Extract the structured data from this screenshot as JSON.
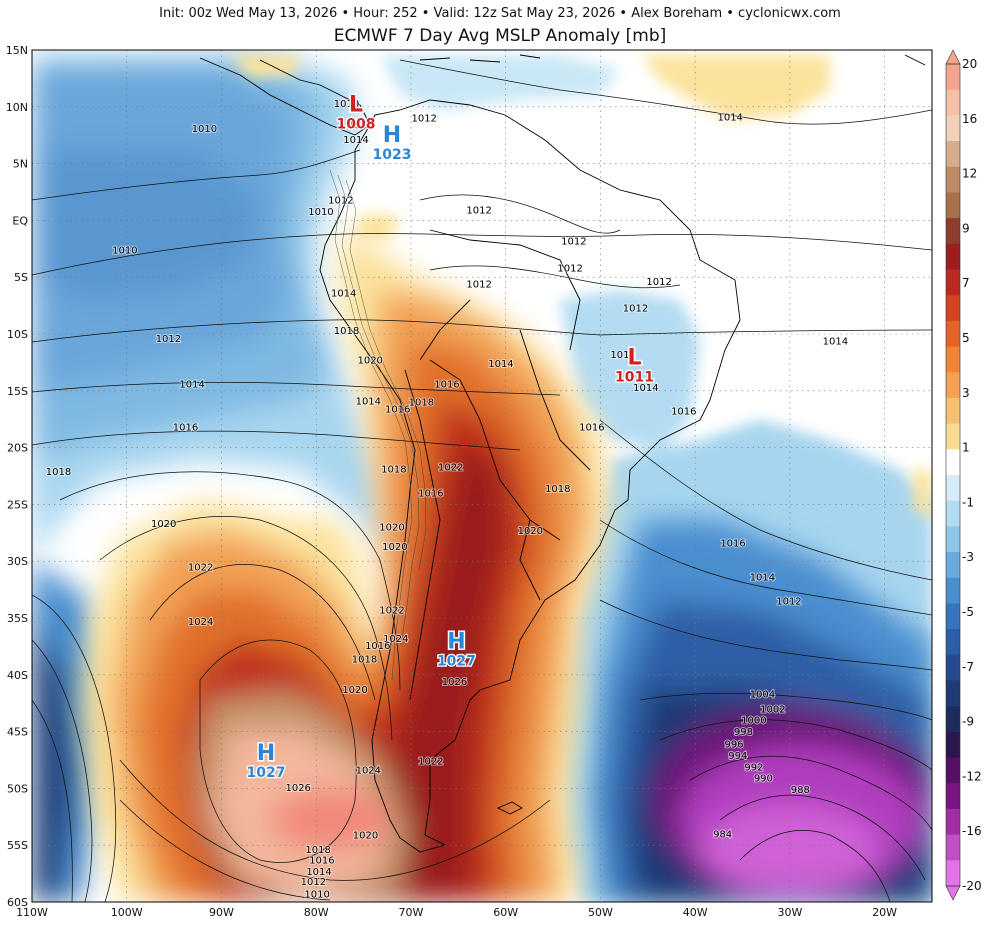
{
  "header": {
    "info_line": "Init: 00z Wed May 13, 2026 • Hour: 252 • Valid: 12z Sat May 23, 2026 • Alex Boreham • cyclonicwx.com",
    "title": "ECMWF 7 Day Avg MSLP Anomaly [mb]"
  },
  "map": {
    "lat_labels": [
      "15N",
      "10N",
      "5N",
      "EQ",
      "5S",
      "10S",
      "15S",
      "20S",
      "25S",
      "30S",
      "35S",
      "40S",
      "45S",
      "50S",
      "55S",
      "60S"
    ],
    "lon_labels": [
      "110W",
      "100W",
      "90W",
      "80W",
      "70W",
      "60W",
      "50W",
      "40W",
      "30W",
      "20W"
    ],
    "colors": {
      "deep_purple": "#7a0f86",
      "magenta": "#c04fd0",
      "dark_blue": "#1e3d7a",
      "blue": "#3d76b8",
      "light_blue": "#a7d5ef",
      "sky": "#c9e7f6",
      "white": "#ffffff",
      "pale_yellow": "#fbe39c",
      "orange": "#f2a154",
      "dark_orange": "#e0702a",
      "red": "#c0301f",
      "dark_red": "#9a1f1f",
      "brown": "#c5946a",
      "peach": "#f3b79d",
      "salmon": "#f2897a"
    },
    "isobar_labels": [
      {
        "text": "1010",
        "lon": -76.8,
        "lat": 10.3
      },
      {
        "text": "1008",
        "lon": -75.3,
        "lat": 8.4
      },
      {
        "text": "1014",
        "lon": -75.8,
        "lat": 7.1
      },
      {
        "text": "1012",
        "lon": -68.6,
        "lat": 9.0
      },
      {
        "text": "1010",
        "lon": -91.8,
        "lat": 8.1
      },
      {
        "text": "1012",
        "lon": -77.4,
        "lat": 1.8
      },
      {
        "text": "1010",
        "lon": -79.5,
        "lat": 0.8
      },
      {
        "text": "1012",
        "lon": -62.8,
        "lat": 0.9
      },
      {
        "text": "1012",
        "lon": -52.8,
        "lat": -1.8
      },
      {
        "text": "1012",
        "lon": -53.2,
        "lat": -4.2
      },
      {
        "text": "1012",
        "lon": -62.8,
        "lat": -5.6
      },
      {
        "text": "1012",
        "lon": -43.8,
        "lat": -5.4
      },
      {
        "text": "1012",
        "lon": -46.3,
        "lat": -7.7
      },
      {
        "text": "1010",
        "lon": -100.2,
        "lat": -2.6
      },
      {
        "text": "1014",
        "lon": -77.1,
        "lat": -6.4
      },
      {
        "text": "1014",
        "lon": -36.3,
        "lat": 9.1
      },
      {
        "text": "1014",
        "lon": -25.2,
        "lat": -10.6
      },
      {
        "text": "1012",
        "lon": -95.6,
        "lat": -10.4
      },
      {
        "text": "1018",
        "lon": -76.8,
        "lat": -9.7
      },
      {
        "text": "1020",
        "lon": -74.3,
        "lat": -12.3
      },
      {
        "text": "1014",
        "lon": -60.5,
        "lat": -12.6
      },
      {
        "text": "1012",
        "lon": -47.6,
        "lat": -11.8
      },
      {
        "text": "1014",
        "lon": -45.2,
        "lat": -14.7
      },
      {
        "text": "1016",
        "lon": -66.2,
        "lat": -14.4
      },
      {
        "text": "1014",
        "lon": -93.1,
        "lat": -14.4
      },
      {
        "text": "1014",
        "lon": -74.5,
        "lat": -15.9
      },
      {
        "text": "1016",
        "lon": -71.4,
        "lat": -16.6
      },
      {
        "text": "1018",
        "lon": -68.9,
        "lat": -16.0
      },
      {
        "text": "1016",
        "lon": -41.2,
        "lat": -16.8
      },
      {
        "text": "1016",
        "lon": -50.9,
        "lat": -18.2
      },
      {
        "text": "1016",
        "lon": -93.8,
        "lat": -18.2
      },
      {
        "text": "1018",
        "lon": -107.2,
        "lat": -22.1
      },
      {
        "text": "1018",
        "lon": -71.8,
        "lat": -21.9
      },
      {
        "text": "1022",
        "lon": -65.8,
        "lat": -21.7
      },
      {
        "text": "1016",
        "lon": -67.9,
        "lat": -24.0
      },
      {
        "text": "1018",
        "lon": -54.5,
        "lat": -23.6
      },
      {
        "text": "1020",
        "lon": -96.1,
        "lat": -26.7
      },
      {
        "text": "1020",
        "lon": -72.0,
        "lat": -27.0
      },
      {
        "text": "1020",
        "lon": -57.4,
        "lat": -27.3
      },
      {
        "text": "1020",
        "lon": -71.7,
        "lat": -28.7
      },
      {
        "text": "1016",
        "lon": -36.0,
        "lat": -28.4
      },
      {
        "text": "1022",
        "lon": -92.2,
        "lat": -30.5
      },
      {
        "text": "1014",
        "lon": -32.9,
        "lat": -31.4
      },
      {
        "text": "1012",
        "lon": -30.1,
        "lat": -33.5
      },
      {
        "text": "1022",
        "lon": -72.0,
        "lat": -34.3
      },
      {
        "text": "1024",
        "lon": -71.6,
        "lat": -36.8
      },
      {
        "text": "1024",
        "lon": -92.2,
        "lat": -35.3
      },
      {
        "text": "1016",
        "lon": -73.5,
        "lat": -37.4
      },
      {
        "text": "1018",
        "lon": -74.9,
        "lat": -38.6
      },
      {
        "text": "1026",
        "lon": -65.4,
        "lat": -40.6
      },
      {
        "text": "1020",
        "lon": -75.9,
        "lat": -41.3
      },
      {
        "text": "1004",
        "lon": -32.9,
        "lat": -41.7
      },
      {
        "text": "1002",
        "lon": -31.8,
        "lat": -43.0
      },
      {
        "text": "1000",
        "lon": -33.8,
        "lat": -44.0
      },
      {
        "text": "998",
        "lon": -34.9,
        "lat": -45.0
      },
      {
        "text": "996",
        "lon": -35.9,
        "lat": -46.1
      },
      {
        "text": "994",
        "lon": -35.5,
        "lat": -47.1
      },
      {
        "text": "1022",
        "lon": -67.9,
        "lat": -47.6
      },
      {
        "text": "992",
        "lon": -33.8,
        "lat": -48.1
      },
      {
        "text": "990",
        "lon": -32.8,
        "lat": -49.1
      },
      {
        "text": "1024",
        "lon": -74.5,
        "lat": -48.4
      },
      {
        "text": "1026",
        "lon": -81.9,
        "lat": -49.9
      },
      {
        "text": "988",
        "lon": -28.9,
        "lat": -50.1
      },
      {
        "text": "1020",
        "lon": -74.8,
        "lat": -54.1
      },
      {
        "text": "984",
        "lon": -37.1,
        "lat": -54.0
      },
      {
        "text": "1018",
        "lon": -79.8,
        "lat": -55.4
      },
      {
        "text": "1016",
        "lon": -79.4,
        "lat": -56.3
      },
      {
        "text": "1014",
        "lon": -79.7,
        "lat": -57.3
      },
      {
        "text": "1012",
        "lon": -80.3,
        "lat": -58.2
      },
      {
        "text": "1010",
        "lon": -79.9,
        "lat": -59.3
      }
    ],
    "pressure_centers": [
      {
        "kind": "L",
        "value": "1008",
        "lon": -75.8,
        "lat": 9.6,
        "color": "#d0201f"
      },
      {
        "kind": "H",
        "value": "1023",
        "lon": -72.0,
        "lat": 6.9,
        "color": "#2b86d9"
      },
      {
        "kind": "L",
        "value": "1011",
        "lon": -46.4,
        "lat": -12.7,
        "color": "#d0201f"
      },
      {
        "kind": "H",
        "value": "1027",
        "lon": -65.2,
        "lat": -37.7,
        "color": "#2b86d9"
      },
      {
        "kind": "H",
        "value": "1027",
        "lon": -85.3,
        "lat": -47.5,
        "color": "#2b86d9"
      }
    ]
  },
  "colorbar": {
    "labels": [
      "20",
      "16",
      "12",
      "9",
      "7",
      "5",
      "3",
      "1",
      "-1",
      "-3",
      "-5",
      "-7",
      "-9",
      "-12",
      "-16",
      "-20"
    ],
    "colors": [
      "#f5a58e",
      "#f7bfa5",
      "#f1d1b7",
      "#d6ad8c",
      "#bd8a65",
      "#a9714b",
      "#8f3d2c",
      "#9c1e1e",
      "#bb2a20",
      "#d4431f",
      "#e5622a",
      "#ef8537",
      "#f3a253",
      "#f6bf72",
      "#f9dc92",
      "#ffffff",
      "#d6edf8",
      "#b3dcf2",
      "#8fc6ea",
      "#6aaadd",
      "#4a8ecf",
      "#3675bd",
      "#2a5ea8",
      "#244b8f",
      "#203a76",
      "#1d2c5c",
      "#2b1650",
      "#561066",
      "#7a1481",
      "#a22ca4",
      "#c24ec6",
      "#e373e6"
    ]
  }
}
